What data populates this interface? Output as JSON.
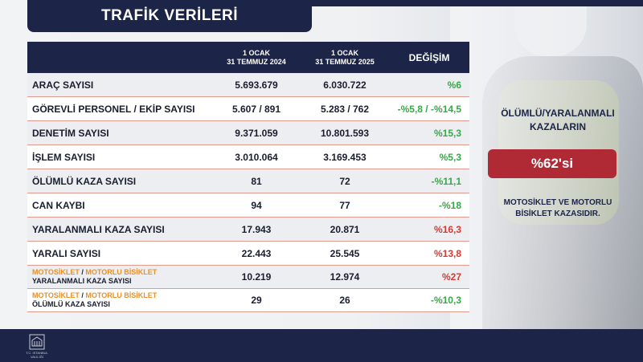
{
  "title": "TRAFİK VERİLERİ",
  "table": {
    "header": {
      "col1_line1": "1 OCAK",
      "col1_line2": "31 TEMMUZ 2024",
      "col2_line1": "1 OCAK",
      "col2_line2": "31 TEMMUZ 2025",
      "change": "DEĞİŞİM"
    },
    "rows": [
      {
        "label": "ARAÇ SAYISI",
        "v2024": "5.693.679",
        "v2025": "6.030.722",
        "change": "%6"
      },
      {
        "label": "GÖREVLİ PERSONEL / EKİP SAYISI",
        "v2024": "5.607 / 891",
        "v2025": "5.283 / 762",
        "change": "-%5,8 / -%14,5"
      },
      {
        "label": "DENETİM SAYISI",
        "v2024": "9.371.059",
        "v2025": "10.801.593",
        "change": "%15,3"
      },
      {
        "label": "İŞLEM SAYISI",
        "v2024": "3.010.064",
        "v2025": "3.169.453",
        "change": "%5,3"
      },
      {
        "label": "ÖLÜMLÜ KAZA SAYISI",
        "v2024": "81",
        "v2025": "72",
        "change": "-%11,1"
      },
      {
        "label": "CAN KAYBI",
        "v2024": "94",
        "v2025": "77",
        "change": "-%18"
      },
      {
        "label": "YARALANMALI KAZA SAYISI",
        "v2024": "17.943",
        "v2025": "20.871",
        "change": "%16,3"
      },
      {
        "label": "YARALI SAYISI",
        "v2024": "22.443",
        "v2025": "25.545",
        "change": "%13,8"
      }
    ],
    "moto_rows": [
      {
        "label_a": "MOTOSİKLET",
        "sep": " / ",
        "label_b": "MOTORLU BİSİKLET",
        "label_c": "YARALANMALI KAZA SAYISI",
        "v2024": "10.219",
        "v2025": "12.974",
        "change": "%27"
      },
      {
        "label_a": "MOTOSİKLET",
        "sep": " / ",
        "label_b": "MOTORLU BİSİKLET",
        "label_c": "ÖLÜMLÜ KAZA SAYISI",
        "v2024": "29",
        "v2025": "26",
        "change": "-%10,3"
      }
    ]
  },
  "side": {
    "heading_line1": "ÖLÜMLÜ/YARALANMALI",
    "heading_line2": "KAZALARIN",
    "badge": "%62'si",
    "footer_line1": "MOTOSİKLET VE MOTORLU",
    "footer_line2": "BİSİKLET KAZASIDIR."
  },
  "logo_caption": "T.C. İSTANBUL VALİLİĞİ",
  "colors": {
    "navy": "#1c2447",
    "positive": "#3aa64a",
    "negative": "#d63a34",
    "badge": "#b02a36",
    "orange": "#e8902a"
  }
}
